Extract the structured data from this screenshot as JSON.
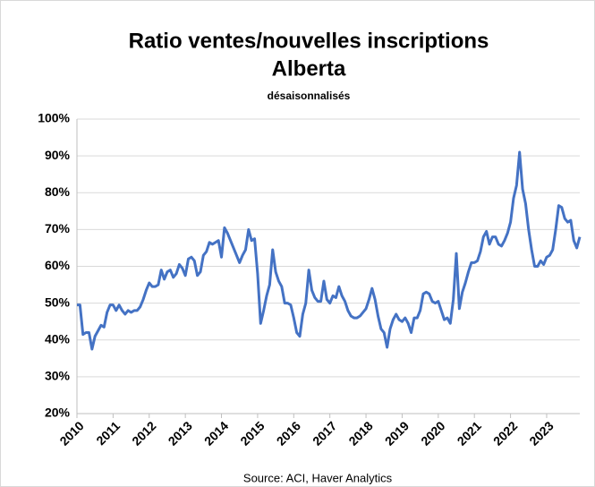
{
  "chart_data": {
    "type": "line",
    "title": "Ratio ventes/nouvelles inscriptions",
    "subtitle": "Alberta",
    "note": "désaisonnalisés",
    "source": "Source: ACI, Haver Analytics",
    "categories": [
      "2010",
      null,
      null,
      null,
      null,
      null,
      null,
      null,
      null,
      null,
      null,
      null,
      "2011",
      null,
      null,
      null,
      null,
      null,
      null,
      null,
      null,
      null,
      null,
      null,
      "2012",
      null,
      null,
      null,
      null,
      null,
      null,
      null,
      null,
      null,
      null,
      null,
      "2013",
      null,
      null,
      null,
      null,
      null,
      null,
      null,
      null,
      null,
      null,
      null,
      "2014",
      null,
      null,
      null,
      null,
      null,
      null,
      null,
      null,
      null,
      null,
      null,
      "2015",
      null,
      null,
      null,
      null,
      null,
      null,
      null,
      null,
      null,
      null,
      null,
      "2016",
      null,
      null,
      null,
      null,
      null,
      null,
      null,
      null,
      null,
      null,
      null,
      "2017",
      null,
      null,
      null,
      null,
      null,
      null,
      null,
      null,
      null,
      null,
      null,
      "2018",
      null,
      null,
      null,
      null,
      null,
      null,
      null,
      null,
      null,
      null,
      null,
      "2019",
      null,
      null,
      null,
      null,
      null,
      null,
      null,
      null,
      null,
      null,
      null,
      "2020",
      null,
      null,
      null,
      null,
      null,
      null,
      null,
      null,
      null,
      null,
      null,
      "2021",
      null,
      null,
      null,
      null,
      null,
      null,
      null,
      null,
      null,
      null,
      null,
      "2022",
      null,
      null,
      null,
      null,
      null,
      null,
      null,
      null,
      null,
      null,
      null,
      "2023",
      null,
      null,
      null,
      null,
      null,
      null,
      null,
      null,
      null,
      null,
      null
    ],
    "series": [
      {
        "name": "Alberta",
        "color": "#4472c4",
        "values": [
          49.5,
          49.5,
          41.5,
          42,
          42,
          37.5,
          41,
          42.5,
          44,
          43.5,
          47.5,
          49.5,
          49.5,
          48,
          49.5,
          48,
          47,
          48,
          47.5,
          48,
          48,
          49,
          51,
          53.5,
          55.5,
          54.5,
          54.5,
          55,
          59,
          56.5,
          58.5,
          59,
          57,
          58,
          60.5,
          59.5,
          57.5,
          62,
          62.5,
          61.5,
          57.5,
          58.5,
          63,
          64,
          66.5,
          66,
          66.5,
          67,
          62.5,
          70.5,
          69,
          67,
          65,
          63,
          61,
          63,
          64.5,
          70,
          67,
          67.5,
          58,
          44.5,
          48,
          52,
          55,
          64.5,
          58.5,
          56,
          54.5,
          50,
          50,
          49.5,
          46,
          42,
          41,
          47,
          50,
          59,
          53.5,
          51.5,
          50.5,
          50.5,
          56,
          51,
          50,
          52,
          51.5,
          54.5,
          52,
          50.5,
          48,
          46.5,
          46,
          46,
          46.5,
          47.5,
          48.5,
          51,
          54,
          51,
          46.5,
          43,
          42,
          38,
          43,
          45.5,
          47,
          45.5,
          45,
          46,
          44.5,
          42,
          46,
          46,
          48,
          52.5,
          53,
          52.5,
          50.5,
          50,
          50.5,
          48,
          45.5,
          46,
          44.5,
          51,
          63.5,
          48.5,
          53,
          55.5,
          58.5,
          61,
          61,
          61.5,
          64,
          68,
          69.5,
          66,
          68,
          68,
          66,
          65.5,
          67,
          69,
          72,
          78.5,
          82,
          91,
          81,
          77,
          70,
          64.5,
          60,
          60,
          61.5,
          60.5,
          62.5,
          63,
          64.5,
          70,
          76.5,
          76,
          73,
          72,
          72.5,
          67,
          65,
          68
        ]
      }
    ],
    "ylim": [
      20,
      100
    ],
    "yticks": [
      {
        "value": 20,
        "label": "20%"
      },
      {
        "value": 30,
        "label": "30%"
      },
      {
        "value": 40,
        "label": "40%"
      },
      {
        "value": 50,
        "label": "50%"
      },
      {
        "value": 60,
        "label": "60%"
      },
      {
        "value": 70,
        "label": "70%"
      },
      {
        "value": 80,
        "label": "80%"
      },
      {
        "value": 90,
        "label": "90%"
      },
      {
        "value": 100,
        "label": "100%"
      }
    ],
    "grid": true
  }
}
